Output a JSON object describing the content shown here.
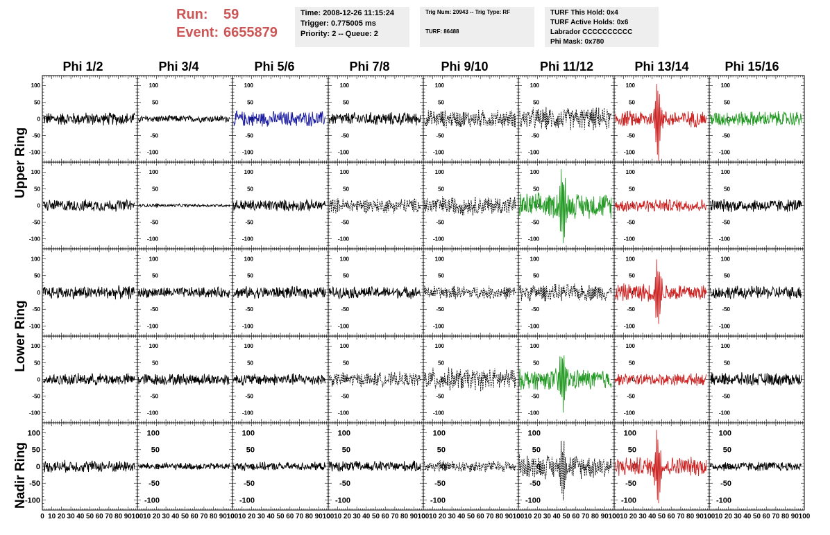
{
  "header": {
    "run_label": "Run:",
    "run_value": "59",
    "event_label": "Event:",
    "event_value": "6655879",
    "box1": [
      "Time: 2008-12-26 11:15:24",
      "Trigger: 0.775005 ms",
      "Priority: 2 -- Queue: 2"
    ],
    "box2": [
      "Trig Num: 20943 -- Trig Type: RF",
      "TURF: 86488"
    ],
    "box3": [
      "TURF This Hold: 0x4",
      "TURF Active Holds: 0x6",
      "Labrador CCCCCCCCCC",
      "Phi Mask: 0x780"
    ]
  },
  "chart_data": {
    "type": "line",
    "columns": [
      "Phi 1/2",
      "Phi 3/4",
      "Phi 5/6",
      "Phi 7/8",
      "Phi 9/10",
      "Phi 11/12",
      "Phi 13/14",
      "Phi 15/16"
    ],
    "row_labels": [
      "Upper Ring",
      "Lower Ring",
      "Nadir Ring"
    ],
    "xlim": [
      0,
      100
    ],
    "ylim": [
      -130,
      130
    ],
    "x_tick_labels": [
      "0",
      "10",
      "20",
      "30",
      "40",
      "50",
      "60",
      "70",
      "80",
      "90",
      "100"
    ],
    "y_tick_labels": [
      "100",
      "50",
      "0",
      "-50",
      "-100"
    ],
    "colors": {
      "black": "#000000",
      "blue": "#1a1aa0",
      "red": "#cc2222",
      "green": "#229922"
    },
    "panels": [
      [
        {
          "c": "black",
          "a": 22,
          "d": false,
          "p": 0
        },
        {
          "c": "black",
          "a": 12,
          "d": false,
          "p": 0
        },
        {
          "c": "blue",
          "a": 26,
          "d": false,
          "p": 0
        },
        {
          "c": "black",
          "a": 22,
          "d": false,
          "p": 0
        },
        {
          "c": "black",
          "a": 30,
          "d": true,
          "p": 0
        },
        {
          "c": "black",
          "a": 38,
          "d": true,
          "p": 0
        },
        {
          "c": "red",
          "a": 28,
          "d": false,
          "p": 115
        },
        {
          "c": "green",
          "a": 26,
          "d": false,
          "p": 0
        }
      ],
      [
        {
          "c": "black",
          "a": 20,
          "d": false,
          "p": 0
        },
        {
          "c": "black",
          "a": 5,
          "d": false,
          "p": 0
        },
        {
          "c": "black",
          "a": 20,
          "d": false,
          "p": 0
        },
        {
          "c": "black",
          "a": 25,
          "d": true,
          "p": 0
        },
        {
          "c": "black",
          "a": 32,
          "d": true,
          "p": 0
        },
        {
          "c": "green",
          "a": 42,
          "d": false,
          "p": 125
        },
        {
          "c": "red",
          "a": 22,
          "d": false,
          "p": 0
        },
        {
          "c": "black",
          "a": 22,
          "d": false,
          "p": 0
        }
      ],
      [
        {
          "c": "black",
          "a": 22,
          "d": false,
          "p": 0
        },
        {
          "c": "black",
          "a": 18,
          "d": false,
          "p": 0
        },
        {
          "c": "black",
          "a": 20,
          "d": false,
          "p": 0
        },
        {
          "c": "black",
          "a": 20,
          "d": false,
          "p": 0
        },
        {
          "c": "black",
          "a": 22,
          "d": true,
          "p": 0
        },
        {
          "c": "black",
          "a": 28,
          "d": true,
          "p": 0
        },
        {
          "c": "red",
          "a": 30,
          "d": false,
          "p": 110
        },
        {
          "c": "black",
          "a": 22,
          "d": false,
          "p": 0
        }
      ],
      [
        {
          "c": "black",
          "a": 20,
          "d": false,
          "p": 0
        },
        {
          "c": "black",
          "a": 20,
          "d": false,
          "p": 0
        },
        {
          "c": "black",
          "a": 20,
          "d": false,
          "p": 0
        },
        {
          "c": "black",
          "a": 24,
          "d": true,
          "p": 0
        },
        {
          "c": "black",
          "a": 38,
          "d": true,
          "p": 0
        },
        {
          "c": "green",
          "a": 35,
          "d": false,
          "p": 90
        },
        {
          "c": "red",
          "a": 20,
          "d": false,
          "p": 0
        },
        {
          "c": "black",
          "a": 22,
          "d": false,
          "p": 0
        }
      ],
      [
        {
          "c": "black",
          "a": 20,
          "d": false,
          "p": 0
        },
        {
          "c": "black",
          "a": 12,
          "d": false,
          "p": 0
        },
        {
          "c": "black",
          "a": 14,
          "d": false,
          "p": 0
        },
        {
          "c": "black",
          "a": 18,
          "d": false,
          "p": 0
        },
        {
          "c": "black",
          "a": 20,
          "d": true,
          "p": 0
        },
        {
          "c": "black",
          "a": 40,
          "d": true,
          "p": 80
        },
        {
          "c": "red",
          "a": 32,
          "d": false,
          "p": 105
        },
        {
          "c": "black",
          "a": 16,
          "d": false,
          "p": 0
        }
      ]
    ]
  }
}
